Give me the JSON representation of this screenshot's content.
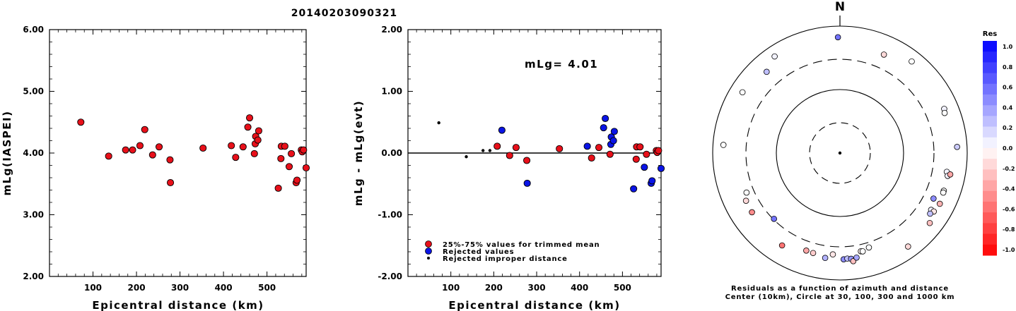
{
  "title": "20140203090321",
  "chart_data": [
    {
      "type": "scatter",
      "ylabel": "mLg(IASPEI)",
      "xlabel": "Epicentral distance (km)",
      "xlim": [
        0,
        590
      ],
      "ylim": [
        2.0,
        6.0
      ],
      "xticks": [
        "100",
        "200",
        "300",
        "400",
        "500"
      ],
      "yticks": [
        "2.00",
        "3.00",
        "4.00",
        "5.00",
        "6.00"
      ],
      "points": [
        {
          "x": 72,
          "y": 4.5,
          "cls": "trimmed"
        },
        {
          "x": 136,
          "y": 3.95,
          "cls": "trimmed"
        },
        {
          "x": 175,
          "y": 4.05,
          "cls": "trimmed"
        },
        {
          "x": 191,
          "y": 4.05,
          "cls": "trimmed"
        },
        {
          "x": 208,
          "y": 4.12,
          "cls": "trimmed"
        },
        {
          "x": 219,
          "y": 4.38,
          "cls": "trimmed"
        },
        {
          "x": 237,
          "y": 3.97,
          "cls": "trimmed"
        },
        {
          "x": 252,
          "y": 4.1,
          "cls": "trimmed"
        },
        {
          "x": 277,
          "y": 3.89,
          "cls": "trimmed"
        },
        {
          "x": 278,
          "y": 3.52,
          "cls": "trimmed"
        },
        {
          "x": 353,
          "y": 4.08,
          "cls": "trimmed"
        },
        {
          "x": 418,
          "y": 4.12,
          "cls": "trimmed"
        },
        {
          "x": 428,
          "y": 3.93,
          "cls": "trimmed"
        },
        {
          "x": 445,
          "y": 4.1,
          "cls": "trimmed"
        },
        {
          "x": 456,
          "y": 4.42,
          "cls": "trimmed"
        },
        {
          "x": 460,
          "y": 4.57,
          "cls": "trimmed"
        },
        {
          "x": 471,
          "y": 3.99,
          "cls": "trimmed"
        },
        {
          "x": 473,
          "y": 4.15,
          "cls": "trimmed"
        },
        {
          "x": 474,
          "y": 4.27,
          "cls": "trimmed"
        },
        {
          "x": 479,
          "y": 4.21,
          "cls": "trimmed"
        },
        {
          "x": 481,
          "y": 4.36,
          "cls": "trimmed"
        },
        {
          "x": 526,
          "y": 3.43,
          "cls": "trimmed"
        },
        {
          "x": 532,
          "y": 3.91,
          "cls": "trimmed"
        },
        {
          "x": 533,
          "y": 4.11,
          "cls": "trimmed"
        },
        {
          "x": 541,
          "y": 4.11,
          "cls": "trimmed"
        },
        {
          "x": 551,
          "y": 3.78,
          "cls": "trimmed"
        },
        {
          "x": 556,
          "y": 3.99,
          "cls": "trimmed"
        },
        {
          "x": 567,
          "y": 3.52,
          "cls": "trimmed"
        },
        {
          "x": 569,
          "y": 3.56,
          "cls": "trimmed"
        },
        {
          "x": 579,
          "y": 4.05,
          "cls": "trimmed"
        },
        {
          "x": 581,
          "y": 4.02,
          "cls": "trimmed"
        },
        {
          "x": 584,
          "y": 4.05,
          "cls": "trimmed"
        },
        {
          "x": 591,
          "y": 3.76,
          "cls": "trimmed"
        }
      ]
    },
    {
      "type": "scatter",
      "ylabel": "mLg - mLg(evt)",
      "xlabel": "Epicentral distance (km)",
      "annotation": "mLg= 4.01",
      "xlim": [
        0,
        590
      ],
      "ylim": [
        -2.0,
        2.0
      ],
      "xticks": [
        "100",
        "200",
        "300",
        "400",
        "500"
      ],
      "yticks": [
        "-2.00",
        "-1.00",
        "0.00",
        "1.00",
        "2.00"
      ],
      "legend": [
        "25%-75% values for trimmed mean",
        "Rejected values",
        "Rejected improper distance"
      ],
      "points": [
        {
          "x": 72,
          "y": 0.49,
          "cls": "improper"
        },
        {
          "x": 136,
          "y": -0.06,
          "cls": "improper"
        },
        {
          "x": 175,
          "y": 0.04,
          "cls": "improper"
        },
        {
          "x": 191,
          "y": 0.04,
          "cls": "improper"
        },
        {
          "x": 208,
          "y": 0.11,
          "cls": "trimmed"
        },
        {
          "x": 219,
          "y": 0.37,
          "cls": "rejected"
        },
        {
          "x": 237,
          "y": -0.04,
          "cls": "trimmed"
        },
        {
          "x": 252,
          "y": 0.09,
          "cls": "trimmed"
        },
        {
          "x": 277,
          "y": -0.12,
          "cls": "trimmed"
        },
        {
          "x": 278,
          "y": -0.49,
          "cls": "rejected"
        },
        {
          "x": 353,
          "y": 0.07,
          "cls": "trimmed"
        },
        {
          "x": 418,
          "y": 0.11,
          "cls": "rejected"
        },
        {
          "x": 428,
          "y": -0.08,
          "cls": "trimmed"
        },
        {
          "x": 445,
          "y": 0.09,
          "cls": "trimmed"
        },
        {
          "x": 456,
          "y": 0.41,
          "cls": "rejected"
        },
        {
          "x": 460,
          "y": 0.56,
          "cls": "rejected"
        },
        {
          "x": 471,
          "y": -0.02,
          "cls": "trimmed"
        },
        {
          "x": 473,
          "y": 0.14,
          "cls": "rejected"
        },
        {
          "x": 474,
          "y": 0.26,
          "cls": "rejected"
        },
        {
          "x": 479,
          "y": 0.2,
          "cls": "rejected"
        },
        {
          "x": 481,
          "y": 0.35,
          "cls": "rejected"
        },
        {
          "x": 526,
          "y": -0.58,
          "cls": "rejected"
        },
        {
          "x": 532,
          "y": -0.1,
          "cls": "trimmed"
        },
        {
          "x": 533,
          "y": 0.1,
          "cls": "trimmed"
        },
        {
          "x": 541,
          "y": 0.1,
          "cls": "trimmed"
        },
        {
          "x": 551,
          "y": -0.23,
          "cls": "rejected"
        },
        {
          "x": 556,
          "y": -0.02,
          "cls": "trimmed"
        },
        {
          "x": 567,
          "y": -0.49,
          "cls": "rejected"
        },
        {
          "x": 569,
          "y": -0.45,
          "cls": "rejected"
        },
        {
          "x": 579,
          "y": 0.04,
          "cls": "trimmed"
        },
        {
          "x": 581,
          "y": 0.01,
          "cls": "trimmed"
        },
        {
          "x": 584,
          "y": 0.04,
          "cls": "trimmed"
        },
        {
          "x": 591,
          "y": -0.25,
          "cls": "rejected"
        }
      ]
    },
    {
      "type": "polar-scatter",
      "north_label": "N",
      "caption_lines": [
        "Residuals as a function of azimuth and distance",
        "Center (10km), Circle at 30, 100, 300 and 1000 km"
      ],
      "rings_km": [
        30,
        100,
        300,
        1000
      ],
      "points": [
        {
          "az": 359,
          "dist": 765,
          "res": 0.55
        },
        {
          "az": 326,
          "dist": 780,
          "res": 0.05
        },
        {
          "az": 318,
          "dist": 627,
          "res": 0.25
        },
        {
          "az": 302,
          "dist": 740,
          "res": 0.0
        },
        {
          "az": 24,
          "dist": 595,
          "res": -0.15
        },
        {
          "az": 38,
          "dist": 774,
          "res": 0.0
        },
        {
          "az": 67,
          "dist": 705,
          "res": 0.05
        },
        {
          "az": 69,
          "dist": 681,
          "res": 0.0
        },
        {
          "az": 87,
          "dist": 790,
          "res": 0.2
        },
        {
          "az": 274,
          "dist": 780,
          "res": 0.0
        },
        {
          "az": 100,
          "dist": 605,
          "res": 0.05
        },
        {
          "az": 102,
          "dist": 640,
          "res": 0.05
        },
        {
          "az": 101,
          "dist": 686,
          "res": -0.35
        },
        {
          "az": 110,
          "dist": 647,
          "res": 0.0
        },
        {
          "az": 111,
          "dist": 650,
          "res": 0.0
        },
        {
          "az": 117,
          "dist": 680,
          "res": -0.3
        },
        {
          "az": 116,
          "dist": 512,
          "res": 0.45
        },
        {
          "az": 122,
          "dist": 584,
          "res": 0.05
        },
        {
          "az": 122,
          "dist": 650,
          "res": -0.1
        },
        {
          "az": 124,
          "dist": 610,
          "res": 0.25
        },
        {
          "az": 128,
          "dist": 720,
          "res": -0.25
        },
        {
          "az": 144,
          "dist": 760,
          "res": -0.15
        },
        {
          "az": 163,
          "dist": 405,
          "res": 0.0
        },
        {
          "az": 168,
          "dist": 440,
          "res": -0.05
        },
        {
          "az": 167,
          "dist": 450,
          "res": 0.0
        },
        {
          "az": 184,
          "dist": 465,
          "res": -0.1
        },
        {
          "az": 199,
          "dist": 498,
          "res": -0.35
        },
        {
          "az": 195,
          "dist": 505,
          "res": -0.2
        },
        {
          "az": 188,
          "dist": 556,
          "res": 0.3
        },
        {
          "az": 178,
          "dist": 565,
          "res": 0.45
        },
        {
          "az": 176,
          "dist": 553,
          "res": 0.25
        },
        {
          "az": 174,
          "dist": 565,
          "res": 0.4
        },
        {
          "az": 173,
          "dist": 620,
          "res": -0.25
        },
        {
          "az": 171,
          "dist": 555,
          "res": 0.35
        },
        {
          "az": 212,
          "dist": 620,
          "res": -0.55
        },
        {
          "az": 236,
          "dist": 555,
          "res": -0.45
        },
        {
          "az": 243,
          "dist": 540,
          "res": -0.15
        },
        {
          "az": 247,
          "dist": 457,
          "res": 0.0
        },
        {
          "az": 225,
          "dist": 295,
          "res": 0.55
        }
      ]
    }
  ],
  "colorbar": {
    "title": "Res",
    "labels": [
      "1.0",
      "0.8",
      "0.6",
      "0.4",
      "0.2",
      "0.0",
      "-0.2",
      "-0.4",
      "-0.6",
      "-0.8",
      "-1.0"
    ]
  },
  "colors": {
    "trimmed": "#e8101a",
    "rejected": "#0a14e6",
    "improper": "#000000",
    "positive": "#0000ff",
    "negative": "#ff0000"
  }
}
